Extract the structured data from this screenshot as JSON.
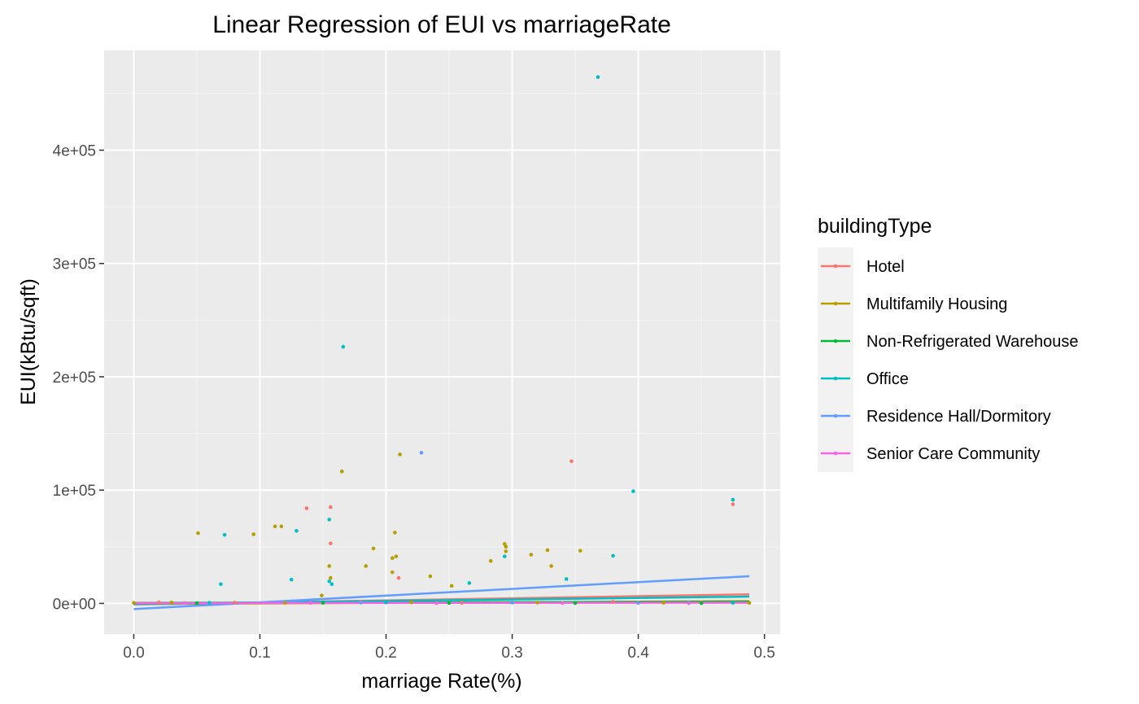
{
  "chart_data": {
    "type": "scatter",
    "title": "Linear Regression of EUI vs marriageRate",
    "xlabel": "marriage Rate(%)",
    "ylabel": "EUI(kBtu/sqft)",
    "xlim": [
      -0.0235,
      0.5125
    ],
    "ylim": [
      -27000,
      488000
    ],
    "x_ticks": [
      0.0,
      0.1,
      0.2,
      0.3,
      0.4,
      0.5
    ],
    "x_tick_labels": [
      "0.0",
      "0.1",
      "0.2",
      "0.3",
      "0.4",
      "0.5"
    ],
    "y_ticks": [
      0,
      100000,
      200000,
      300000,
      400000
    ],
    "y_tick_labels": [
      "0e+00",
      "1e+05",
      "2e+05",
      "3e+05",
      "4e+05"
    ],
    "grid": true,
    "legend": {
      "title": "buildingType",
      "placement": "right"
    },
    "series": [
      {
        "name": "Hotel",
        "color": "#F8766D",
        "points": [
          [
            0.137,
            84000
          ],
          [
            0.156,
            85000
          ],
          [
            0.156,
            53000
          ],
          [
            0.21,
            22500
          ],
          [
            0.347,
            125500
          ],
          [
            0.475,
            87500
          ],
          [
            0.02,
            900
          ],
          [
            0.08,
            700
          ],
          [
            0.18,
            1200
          ],
          [
            0.26,
            600
          ],
          [
            0.38,
            1500
          ],
          [
            0.45,
            800
          ]
        ],
        "fit": {
          "x0": 0.0,
          "y0": -1000,
          "x1": 0.488,
          "y1": 8000
        }
      },
      {
        "name": "Multifamily Housing",
        "color": "#B79F00",
        "points": [
          [
            0.0,
            500
          ],
          [
            0.051,
            62000
          ],
          [
            0.095,
            61000
          ],
          [
            0.112,
            68000
          ],
          [
            0.117,
            68000
          ],
          [
            0.149,
            7000
          ],
          [
            0.155,
            33000
          ],
          [
            0.156,
            22500
          ],
          [
            0.165,
            116500
          ],
          [
            0.184,
            33000
          ],
          [
            0.19,
            48500
          ],
          [
            0.205,
            40000
          ],
          [
            0.205,
            27500
          ],
          [
            0.207,
            62500
          ],
          [
            0.208,
            41500
          ],
          [
            0.211,
            131500
          ],
          [
            0.235,
            24000
          ],
          [
            0.252,
            15500
          ],
          [
            0.283,
            37500
          ],
          [
            0.294,
            52500
          ],
          [
            0.295,
            50000
          ],
          [
            0.295,
            46000
          ],
          [
            0.315,
            43000
          ],
          [
            0.328,
            47000
          ],
          [
            0.331,
            33000
          ],
          [
            0.354,
            46500
          ],
          [
            0.488,
            500
          ],
          [
            0.03,
            800
          ],
          [
            0.12,
            400
          ],
          [
            0.22,
            900
          ],
          [
            0.32,
            700
          ],
          [
            0.42,
            600
          ]
        ],
        "fit": {
          "x0": 0.0,
          "y0": -500,
          "x1": 0.488,
          "y1": 2000
        }
      },
      {
        "name": "Non-Refrigerated Warehouse",
        "color": "#00BA38",
        "points": [
          [
            0.05,
            300
          ],
          [
            0.15,
            500
          ],
          [
            0.25,
            400
          ],
          [
            0.35,
            300
          ],
          [
            0.45,
            200
          ]
        ],
        "fit": {
          "x0": 0.0,
          "y0": 500,
          "x1": 0.488,
          "y1": 1500
        }
      },
      {
        "name": "Office",
        "color": "#00BFC4",
        "points": [
          [
            0.069,
            17000
          ],
          [
            0.072,
            60500
          ],
          [
            0.125,
            21000
          ],
          [
            0.129,
            64000
          ],
          [
            0.155,
            74000
          ],
          [
            0.155,
            19500
          ],
          [
            0.157,
            17000
          ],
          [
            0.166,
            226500
          ],
          [
            0.266,
            18000
          ],
          [
            0.294,
            41500
          ],
          [
            0.343,
            21500
          ],
          [
            0.368,
            464500
          ],
          [
            0.38,
            42000
          ],
          [
            0.396,
            99000
          ],
          [
            0.475,
            91500
          ],
          [
            0.475,
            500
          ],
          [
            0.06,
            600
          ],
          [
            0.2,
            800
          ],
          [
            0.3,
            700
          ],
          [
            0.44,
            900
          ]
        ],
        "fit": {
          "x0": 0.0,
          "y0": -500,
          "x1": 0.488,
          "y1": 6000
        }
      },
      {
        "name": "Residence Hall/Dormitory",
        "color": "#619CFF",
        "points": [
          [
            0.228,
            133000
          ],
          [
            0.18,
            700
          ],
          [
            0.3,
            900
          ],
          [
            0.4,
            500
          ]
        ],
        "fit": {
          "x0": 0.0,
          "y0": -5000,
          "x1": 0.488,
          "y1": 24000
        }
      },
      {
        "name": "Senior Care Community",
        "color": "#F564E3",
        "points": [
          [
            0.04,
            300
          ],
          [
            0.14,
            400
          ],
          [
            0.24,
            300
          ],
          [
            0.34,
            400
          ],
          [
            0.44,
            300
          ]
        ],
        "fit": {
          "x0": 0.0,
          "y0": 300,
          "x1": 0.488,
          "y1": 600
        }
      }
    ]
  }
}
